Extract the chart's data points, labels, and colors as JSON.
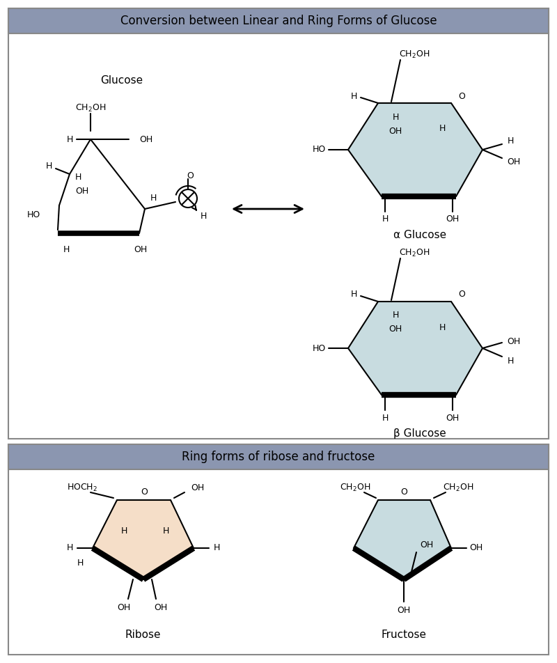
{
  "title1": "Conversion between Linear and Ring Forms of Glucose",
  "title2": "Ring forms of ribose and fructose",
  "header_bg": "#8B96B0",
  "panel_border": "#888888",
  "glucose_ring_color": "#C8DCE0",
  "ribose_ring_color": "#F5DEC8",
  "fructose_ring_color": "#C8DCE0",
  "alpha_label": "α Glucose",
  "beta_label": "β Glucose",
  "ribose_label": "Ribose",
  "fructose_label": "Fructose",
  "glucose_label": "Glucose"
}
